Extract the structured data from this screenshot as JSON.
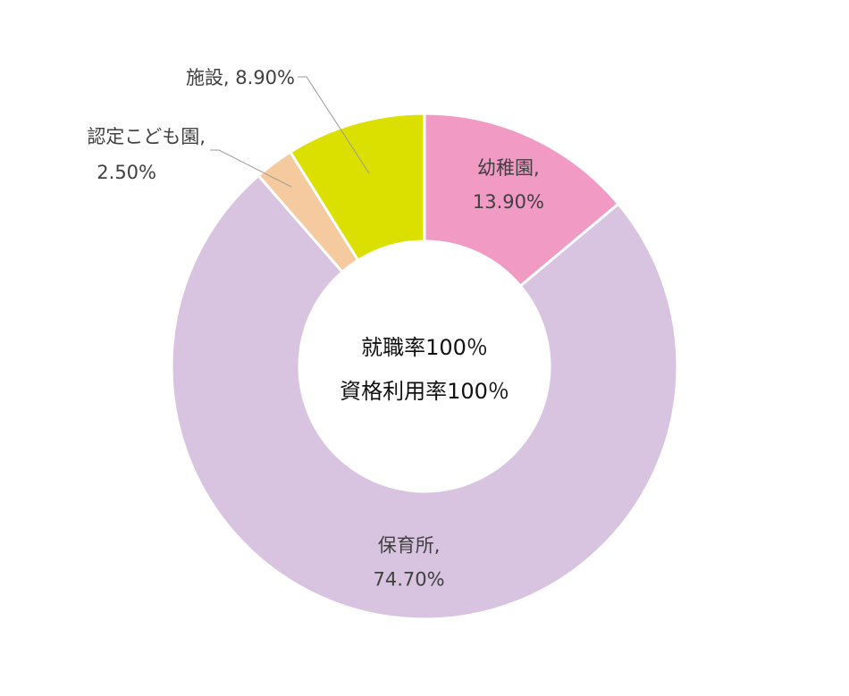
{
  "chart_data": {
    "type": "pie",
    "variant": "donut",
    "slices": [
      {
        "name": "幼稚園",
        "value": 13.9,
        "label_line1": "幼稚園,",
        "label_line2": "13.90%",
        "color": "#F19AC4"
      },
      {
        "name": "保育所",
        "value": 74.7,
        "label_line1": "保育所,",
        "label_line2": "74.70%",
        "color": "#D8C4E0"
      },
      {
        "name": "認定こども園",
        "value": 2.5,
        "label_line1": "認定こども園,",
        "label_line2": "2.50%",
        "color": "#F5CA9F"
      },
      {
        "name": "施設",
        "value": 8.9,
        "label_line1": "施設, 8.90%",
        "label_line2": "",
        "color": "#DCE000"
      }
    ],
    "center_text": {
      "line1": "就職率100％",
      "line2": "資格利用率100％"
    },
    "legend": "none",
    "start_direction": "top",
    "order": "clockwise"
  }
}
